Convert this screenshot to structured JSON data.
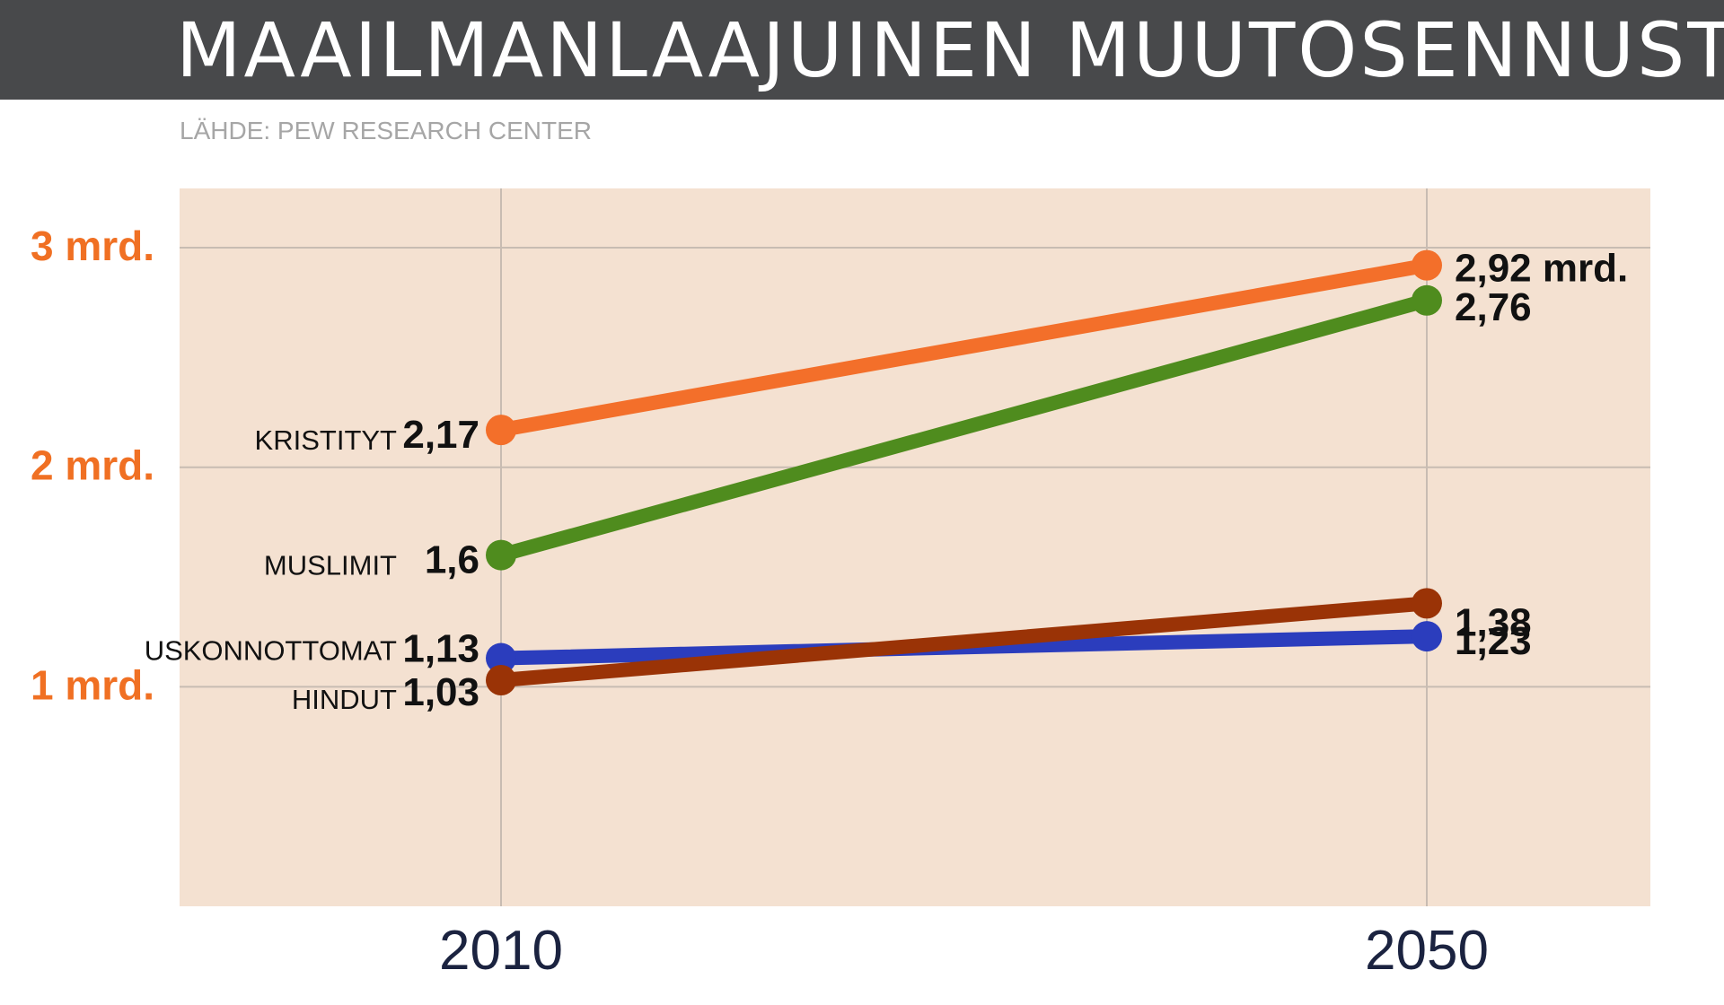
{
  "header": {
    "title": "MAAILMANLAAJUINEN MUUTOSENNUSTE",
    "source": "LÄHDE: PEW RESEARCH CENTER"
  },
  "colors": {
    "header_bg": "#48494b",
    "plot_bg": "#f4e1d1",
    "grid": "#c8bcb2",
    "axis_label": "#f07023",
    "x_tick": "#1b2340",
    "value_label": "#111111"
  },
  "chart_data": {
    "type": "line",
    "x": [
      2010,
      2050
    ],
    "x_tick_labels": [
      "2010",
      "2050"
    ],
    "y_ticks": [
      1,
      2,
      3
    ],
    "y_tick_labels": [
      "1 mrd.",
      "2 mrd.",
      "3 mrd."
    ],
    "ylim": [
      0,
      3.27
    ],
    "grid": true,
    "series": [
      {
        "name": "KRISTITYT",
        "values": [
          2.17,
          2.92
        ],
        "labels": [
          "2,17",
          "2,92 mrd."
        ],
        "color": "#f36f2a"
      },
      {
        "name": "MUSLIMIT",
        "values": [
          1.6,
          2.76
        ],
        "labels": [
          "1,6",
          "2,76"
        ],
        "color": "#4f8c1e"
      },
      {
        "name": "USKONNOTTOMAT",
        "values": [
          1.13,
          1.23
        ],
        "labels": [
          "1,13",
          "1,23"
        ],
        "color": "#2b3dbd"
      },
      {
        "name": "HINDUT",
        "values": [
          1.03,
          1.38
        ],
        "labels": [
          "1,03",
          "1,38"
        ],
        "color": "#9a3306"
      }
    ]
  }
}
